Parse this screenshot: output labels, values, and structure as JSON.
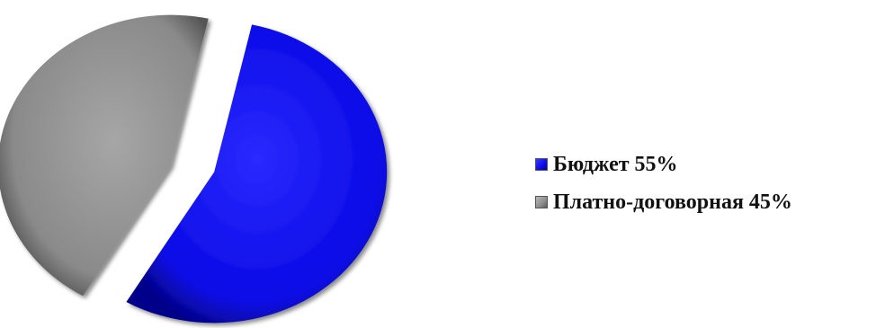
{
  "chart_data": {
    "type": "pie",
    "slices": [
      {
        "label": "Бюджет",
        "value": 55,
        "color": "#0a0aee"
      },
      {
        "label": "Платно-договорная",
        "value": 45,
        "color": "#8c8c8c"
      }
    ],
    "legend": {
      "position": "right",
      "entries": [
        {
          "text": "Бюджет 55%",
          "color": "#0a0aee"
        },
        {
          "text": "Платно-договорная 45%",
          "color": "#8c8c8c"
        }
      ]
    }
  }
}
